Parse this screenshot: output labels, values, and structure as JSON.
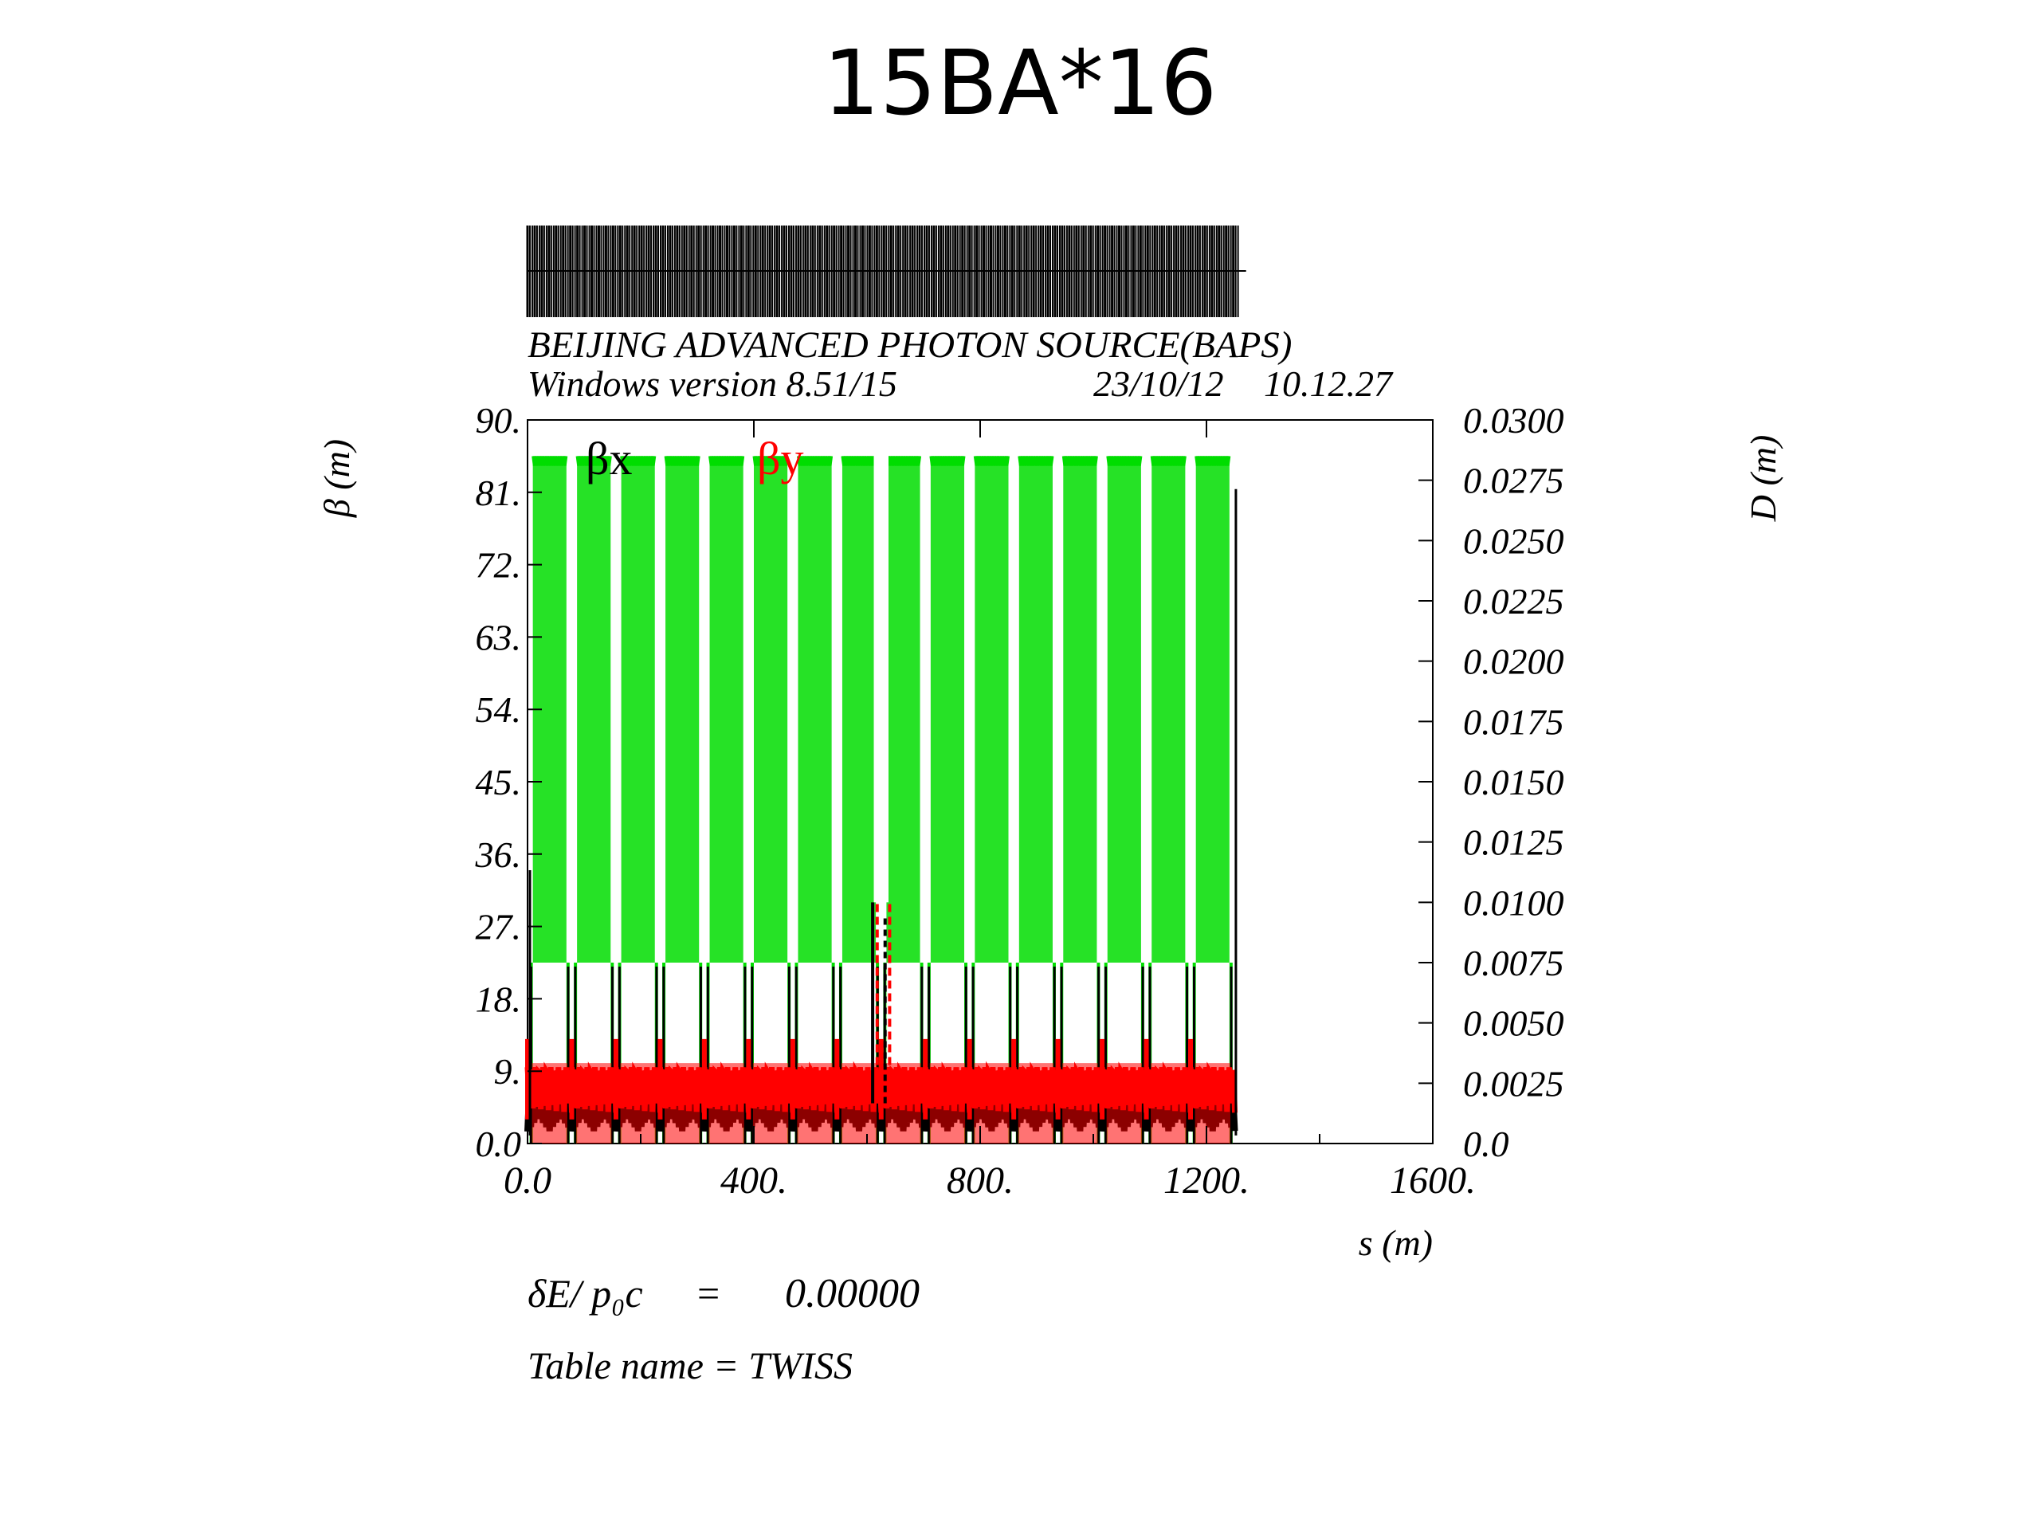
{
  "slide_title": "15BA*16",
  "chart_data": {
    "type": "line",
    "title": "BEIJING ADVANCED PHOTON SOURCE(BAPS)",
    "subtitle": "Windows version 8.51/15",
    "date": "23/10/12",
    "time": "10.12.27",
    "xlabel": "s (m)",
    "ylabel_left": "β (m)",
    "ylabel_right": "D (m)",
    "xlim": [
      0,
      1600
    ],
    "ylim_left": [
      0,
      90
    ],
    "ylim_right": [
      0,
      0.03
    ],
    "x_ticks": [
      "0.0",
      "400.",
      "800.",
      "1200.",
      "1600."
    ],
    "x_tick_values": [
      0,
      400,
      800,
      1200,
      1600
    ],
    "y_left_ticks": [
      "0.0",
      "9.",
      "18.",
      "27.",
      "36.",
      "45.",
      "54.",
      "63.",
      "72.",
      "81.",
      "90."
    ],
    "y_right_ticks": [
      "0.0",
      "0.0025",
      "0.0050",
      "0.0075",
      "0.0100",
      "0.0125",
      "0.0150",
      "0.0175",
      "0.0200",
      "0.0225",
      "0.0250",
      "0.0275",
      "0.0300"
    ],
    "legend": [
      "βx",
      "βy"
    ],
    "series": [
      {
        "name": "βx",
        "color": "#000000",
        "peak_ring": 22,
        "peak_injection": 30
      },
      {
        "name": "βy",
        "color": "#ff0000",
        "peak_ring": 10,
        "peak_injection": 30
      },
      {
        "name": "D",
        "color": "#00dd00",
        "peak_ring": 0.0285,
        "valley_ring": 0.0075
      }
    ],
    "ring_extent": [
      0,
      1250
    ],
    "cell_count": 16,
    "injection_section": [
      610,
      640
    ]
  },
  "footer": {
    "energy_label": "δE/ p₀c",
    "energy_eq": "=",
    "energy_value": "0.00000",
    "table_label": "Table name = TWISS"
  },
  "colors": {
    "dispersion": "#00dd00",
    "beta_y": "#ff0000",
    "beta_x": "#000000"
  }
}
